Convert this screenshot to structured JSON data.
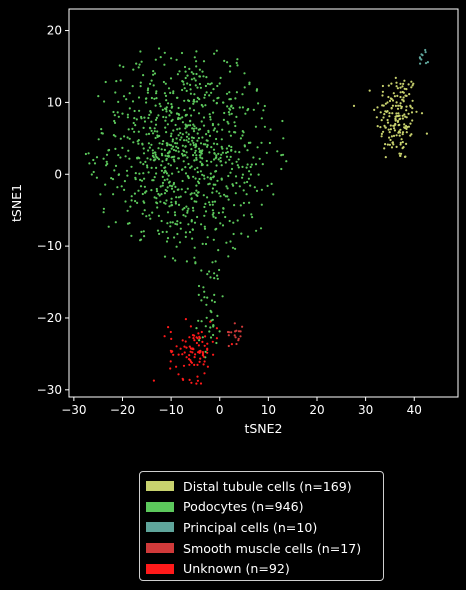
{
  "chart_data": {
    "type": "scatter",
    "xlabel": "tSNE2",
    "ylabel": "tSNE1",
    "xlim": [
      -31,
      49
    ],
    "ylim": [
      -31,
      23
    ],
    "xticks": [
      -30,
      -20,
      -10,
      0,
      10,
      20,
      30,
      40
    ],
    "yticks": [
      -30,
      -20,
      -10,
      0,
      10,
      20
    ],
    "grid": false,
    "legend_position": "below",
    "background": "#000000",
    "series": [
      {
        "name": "Distal tubule cells (n=169)",
        "color": "#c8d26e",
        "count": 169,
        "clusters": [
          {
            "cx": 36.5,
            "cy": 8,
            "sx": 2.2,
            "sy": 3.2,
            "n": 169
          }
        ]
      },
      {
        "name": "Podocytes (n=946)",
        "color": "#5cc85c",
        "count": 946,
        "clusters": [
          {
            "cx": -7,
            "cy": 3,
            "sx": 9,
            "sy": 7,
            "n": 900
          },
          {
            "cx": -2,
            "cy": -18,
            "sx": 1.6,
            "sy": 3.5,
            "n": 46
          }
        ]
      },
      {
        "name": "Principal cells (n=10)",
        "color": "#5fa59b",
        "count": 10,
        "clusters": [
          {
            "cx": 42,
            "cy": 16.5,
            "sx": 0.5,
            "sy": 0.8,
            "n": 10
          }
        ]
      },
      {
        "name": "Smooth muscle cells (n=17)",
        "color": "#d03a3a",
        "count": 17,
        "clusters": [
          {
            "cx": 3.5,
            "cy": -22,
            "sx": 0.8,
            "sy": 0.8,
            "n": 17
          }
        ]
      },
      {
        "name": "Unknown (n=92)",
        "color": "#ff1a1a",
        "count": 92,
        "clusters": [
          {
            "cx": -5.5,
            "cy": -24.5,
            "sx": 2.5,
            "sy": 2,
            "n": 92
          }
        ]
      }
    ]
  }
}
